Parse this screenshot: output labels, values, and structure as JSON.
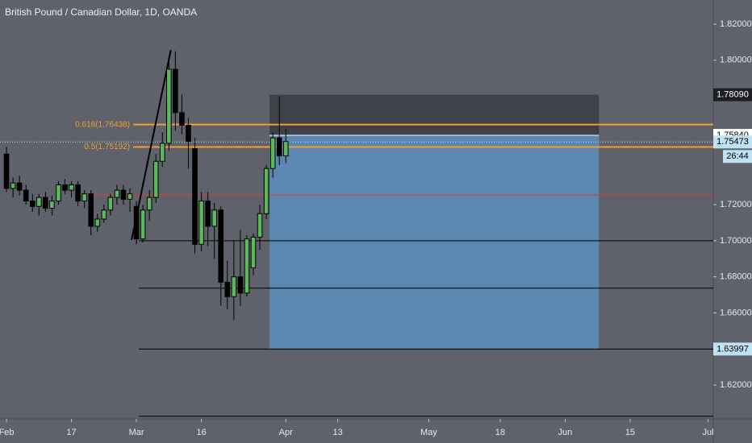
{
  "chart_data": {
    "type": "candlestick",
    "title": "British Pound / Canadian Dollar, 1D, OANDA",
    "x": [
      0,
      1,
      2,
      3,
      4,
      5,
      6,
      7,
      8,
      9,
      10,
      11,
      12,
      13,
      14,
      15,
      16,
      17,
      18,
      19,
      20,
      21,
      22,
      23,
      24,
      25,
      26,
      27,
      28,
      29,
      30,
      31,
      32,
      33,
      34,
      35,
      36,
      37,
      38,
      39,
      40,
      41,
      42,
      43
    ],
    "open": [
      1.748,
      1.729,
      1.732,
      1.728,
      1.722,
      1.719,
      1.724,
      1.718,
      1.722,
      1.731,
      1.728,
      1.731,
      1.722,
      1.726,
      1.708,
      1.712,
      1.717,
      1.724,
      1.728,
      1.723,
      1.719,
      1.701,
      1.717,
      1.724,
      1.744,
      1.754,
      1.795,
      1.771,
      1.764,
      1.751,
      1.698,
      1.722,
      1.708,
      1.717,
      1.677,
      1.669,
      1.68,
      1.671,
      1.685,
      1.702,
      1.715,
      1.74,
      1.757,
      1.747
    ],
    "high": [
      1.752,
      1.735,
      1.736,
      1.731,
      1.726,
      1.726,
      1.727,
      1.725,
      1.733,
      1.734,
      1.733,
      1.733,
      1.728,
      1.728,
      1.715,
      1.72,
      1.726,
      1.731,
      1.731,
      1.729,
      1.722,
      1.72,
      1.728,
      1.748,
      1.76,
      1.799,
      1.805,
      1.781,
      1.768,
      1.757,
      1.727,
      1.727,
      1.721,
      1.719,
      1.689,
      1.7,
      1.706,
      1.703,
      1.704,
      1.72,
      1.742,
      1.76,
      1.78,
      1.762
    ],
    "low": [
      1.727,
      1.724,
      1.725,
      1.72,
      1.716,
      1.714,
      1.716,
      1.714,
      1.72,
      1.726,
      1.724,
      1.719,
      1.718,
      1.703,
      1.705,
      1.71,
      1.714,
      1.72,
      1.72,
      1.716,
      1.698,
      1.699,
      1.711,
      1.721,
      1.741,
      1.75,
      1.761,
      1.759,
      1.74,
      1.693,
      1.694,
      1.697,
      1.69,
      1.664,
      1.662,
      1.656,
      1.664,
      1.669,
      1.681,
      1.695,
      1.712,
      1.735,
      1.742,
      1.743
    ],
    "close": [
      1.729,
      1.732,
      1.728,
      1.722,
      1.719,
      1.724,
      1.718,
      1.722,
      1.731,
      1.728,
      1.731,
      1.722,
      1.726,
      1.708,
      1.712,
      1.717,
      1.724,
      1.728,
      1.723,
      1.726,
      1.701,
      1.717,
      1.724,
      1.744,
      1.754,
      1.795,
      1.771,
      1.764,
      1.755,
      1.698,
      1.722,
      1.708,
      1.717,
      1.677,
      1.669,
      1.68,
      1.671,
      1.701,
      1.702,
      1.715,
      1.74,
      1.757,
      1.747,
      1.755
    ],
    "up_color": "#5cb85c",
    "down_color": "#000000",
    "xlim": [
      -1,
      108.8
    ],
    "ylim": [
      1.6013,
      1.8334
    ],
    "xticks": [
      {
        "value": 0,
        "label": "Feb"
      },
      {
        "value": 10,
        "label": "17"
      },
      {
        "value": 20,
        "label": "Mar"
      },
      {
        "value": 30,
        "label": "16"
      },
      {
        "value": 43,
        "label": "Apr"
      },
      {
        "value": 51,
        "label": "13"
      },
      {
        "value": 65,
        "label": "May"
      },
      {
        "value": 76,
        "label": "18"
      },
      {
        "value": 86,
        "label": "Jun"
      },
      {
        "value": 96,
        "label": "15"
      },
      {
        "value": 108,
        "label": "Jul"
      }
    ],
    "yticks": [
      {
        "value": 1.62,
        "label": "1.62000"
      },
      {
        "value": 1.66,
        "label": "1.66000"
      },
      {
        "value": 1.68,
        "label": "1.68000"
      },
      {
        "value": 1.7,
        "label": "1.70000"
      },
      {
        "value": 1.72,
        "label": "1.72000"
      },
      {
        "value": 1.8,
        "label": "1.80000"
      },
      {
        "value": 1.82,
        "label": "1.82000"
      }
    ],
    "trendline": {
      "x": [
        19.25,
        25.3
      ],
      "y": [
        1.7004,
        1.8057
      ],
      "color": "#000000"
    },
    "levels": [
      {
        "price": 1.7254,
        "from": 11.4,
        "color": "#e53935"
      },
      {
        "price": 1.7,
        "from": 20.4,
        "color": "#000000"
      },
      {
        "price": 1.6737,
        "from": 20.4,
        "color": "#000000"
      },
      {
        "price": 1.63997,
        "from": 20.4,
        "color": "#000000"
      },
      {
        "price": 1.6027,
        "from": 20.4,
        "color": "#000000"
      }
    ],
    "fib_levels": [
      {
        "label": "0.618(1.76438)",
        "price": 1.76438,
        "from": 19.5,
        "color": "#f0a030"
      },
      {
        "label": "0.5(1.75192)",
        "price": 1.75192,
        "from": 19.5,
        "color": "#f0a030"
      }
    ],
    "position": {
      "x": [
        40.5,
        91.2
      ],
      "stop": 1.7809,
      "entry": 1.7584,
      "target": 1.63997,
      "stop_color": "#3f4148",
      "target_color": "#5b88b1"
    },
    "current_price": 1.75473,
    "price_badges": [
      {
        "value": 1.7809,
        "label": "1.78090",
        "bg": "#1e1f24",
        "fg": "#ffffff"
      },
      {
        "value": 1.7584,
        "label": "1.75840",
        "bg": "#ffffff",
        "fg": "#000000"
      },
      {
        "value": 1.75473,
        "label": "1.75473",
        "bg": "#bfe3f5",
        "fg": "#000000"
      },
      {
        "value": 1.63997,
        "label": "1.63997",
        "bg": "#bfe3f5",
        "fg": "#000000"
      }
    ],
    "countdown": "26:44"
  }
}
